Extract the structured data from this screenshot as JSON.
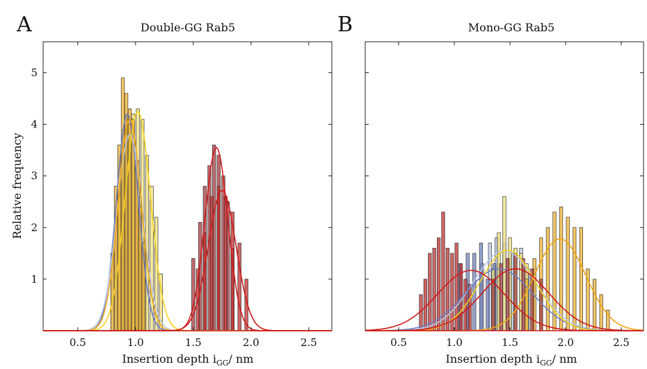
{
  "panels": [
    {
      "letter": "A",
      "title": "Double-GG Rab5",
      "xlabel_main": "Insertion depth i",
      "xlabel_sub": "GG",
      "xlabel_tail": "/ nm",
      "ylabel": "Relative frequency"
    },
    {
      "letter": "B",
      "title": "Mono-GG Rab5",
      "xlabel_main": "Insertion depth i",
      "xlabel_sub": "GG",
      "xlabel_tail": "/ nm",
      "ylabel": ""
    }
  ],
  "colors": {
    "blue": "#6f7fc0",
    "lightblue": "#b9c8e6",
    "yellow": "#f3e27a",
    "orange": "#f2b32a",
    "red": "#c0282a",
    "darkred": "#a8343a",
    "curve_yellow": "#f5d21f",
    "curve_orange": "#f0a514",
    "curve_red": "#d01a1a"
  },
  "chart_data": [
    {
      "type": "bar",
      "title": "Double-GG Rab5",
      "xlabel": "Insertion depth iGG/ nm",
      "ylabel": "Relative frequency",
      "xlim": [
        0.2,
        2.7
      ],
      "ylim": [
        0,
        5.6
      ],
      "xticks": [
        "0.5",
        "1.0",
        "1.5",
        "2.0",
        "2.5"
      ],
      "yticks": [
        "1",
        "2",
        "3",
        "4",
        "5"
      ],
      "series": [
        {
          "color": "blue",
          "curve": "blue",
          "mean": 0.93,
          "sd": 0.095,
          "peak": 4.2,
          "bins": [
            0.88,
            0.9,
            0.92,
            0.94,
            0.96,
            0.98
          ],
          "values": [
            2.8,
            3.9,
            4.2,
            4.1,
            3.6,
            3.2
          ]
        },
        {
          "color": "lightblue",
          "curve": "lightblue",
          "mean": 0.95,
          "sd": 0.11,
          "peak": 3.8,
          "bins": [
            0.8,
            0.84,
            0.88,
            0.92,
            0.96,
            1.0,
            1.04,
            1.08
          ],
          "values": [
            1.5,
            2.4,
            3.4,
            3.8,
            3.7,
            3.3,
            2.6,
            1.8
          ]
        },
        {
          "color": "yellow",
          "curve": "curve_yellow",
          "mean": 1.02,
          "sd": 0.11,
          "peak": 4.25,
          "bins": [
            0.86,
            0.9,
            0.94,
            0.98,
            1.02,
            1.06,
            1.1,
            1.14,
            1.18,
            1.22
          ],
          "values": [
            2.6,
            3.5,
            4.0,
            4.2,
            4.3,
            4.1,
            3.4,
            2.8,
            2.2,
            1.1
          ]
        },
        {
          "color": "orange",
          "curve": "curve_orange",
          "mean": 0.95,
          "sd": 0.1,
          "peak": 4.1,
          "bins": [
            0.8,
            0.83,
            0.86,
            0.89,
            0.92,
            0.95,
            0.98,
            1.01,
            1.04,
            1.07
          ],
          "values": [
            1.5,
            2.8,
            3.6,
            4.9,
            4.6,
            4.3,
            4.1,
            3.3,
            2.4,
            1.7
          ]
        },
        {
          "color": "darkred",
          "curve": "curve_red",
          "mean": 1.7,
          "sd": 0.1,
          "peak": 3.55,
          "bins": [
            1.5,
            1.56,
            1.6,
            1.64,
            1.68,
            1.72,
            1.76,
            1.8,
            1.84
          ],
          "values": [
            1.4,
            2.1,
            2.8,
            3.2,
            3.6,
            3.4,
            3.0,
            2.5,
            1.6
          ]
        },
        {
          "color": "red",
          "curve": "curve_red",
          "mean": 1.75,
          "sd": 0.12,
          "peak": 2.72,
          "bins": [
            1.54,
            1.6,
            1.66,
            1.72,
            1.78,
            1.84,
            1.9,
            1.96
          ],
          "values": [
            1.2,
            1.9,
            2.6,
            2.8,
            2.6,
            2.3,
            1.7,
            1.0
          ]
        }
      ]
    },
    {
      "type": "bar",
      "title": "Mono-GG Rab5",
      "xlabel": "Insertion depth iGG/ nm",
      "xlim": [
        0.2,
        2.7
      ],
      "ylim": [
        0,
        5.6
      ],
      "xticks": [
        "0.5",
        "1.0",
        "1.5",
        "2.0",
        "2.5"
      ],
      "series": [
        {
          "color": "lightblue",
          "curve": "lightblue",
          "mean": 1.45,
          "sd": 0.28,
          "peak": 1.55,
          "bins": [
            1.25,
            1.32,
            1.38,
            1.45,
            1.52,
            1.6,
            1.66
          ],
          "values": [
            1.3,
            1.7,
            1.8,
            1.7,
            1.5,
            1.6,
            1.2
          ]
        },
        {
          "color": "blue",
          "curve": "blue",
          "mean": 1.4,
          "sd": 0.3,
          "peak": 1.2,
          "bins": [
            1.05,
            1.12,
            1.18,
            1.24,
            1.3,
            1.36
          ],
          "values": [
            1.3,
            1.5,
            1.5,
            1.7,
            1.0,
            1.3
          ]
        },
        {
          "color": "yellow",
          "curve": "curve_yellow",
          "mean": 1.48,
          "sd": 0.25,
          "peak": 1.56,
          "bins": [
            1.35,
            1.4,
            1.45,
            1.5,
            1.55,
            1.6,
            1.65,
            1.7
          ],
          "values": [
            1.2,
            1.9,
            2.6,
            1.8,
            1.6,
            1.5,
            1.3,
            1.1
          ]
        },
        {
          "color": "orange",
          "curve": "curve_orange",
          "mean": 1.95,
          "sd": 0.23,
          "peak": 1.78,
          "bins": [
            1.65,
            1.72,
            1.78,
            1.84,
            1.9,
            1.96,
            2.02,
            2.08,
            2.14,
            2.2,
            2.26,
            2.32,
            2.38
          ],
          "values": [
            1.0,
            1.4,
            1.8,
            2.0,
            2.3,
            2.4,
            2.2,
            2.0,
            2.0,
            1.2,
            1.0,
            0.7,
            0.4
          ]
        },
        {
          "color": "red",
          "curve": "curve_red",
          "mean": 1.15,
          "sd": 0.3,
          "peak": 1.17,
          "bins": [
            0.7,
            0.74,
            0.78,
            0.82,
            0.86,
            0.9,
            0.94,
            0.98,
            1.02,
            1.06,
            1.1,
            1.14
          ],
          "values": [
            0.7,
            1.0,
            1.5,
            1.6,
            1.8,
            2.3,
            1.6,
            1.5,
            1.7,
            1.3,
            1.0,
            0.9
          ]
        },
        {
          "color": "darkred",
          "curve": "curve_red",
          "mean": 1.55,
          "sd": 0.3,
          "peak": 1.2,
          "bins": [
            1.35,
            1.42,
            1.48,
            1.55,
            1.62,
            1.7,
            1.78
          ],
          "values": [
            1.0,
            1.3,
            1.4,
            1.5,
            1.4,
            1.2,
            1.0
          ]
        }
      ]
    }
  ]
}
